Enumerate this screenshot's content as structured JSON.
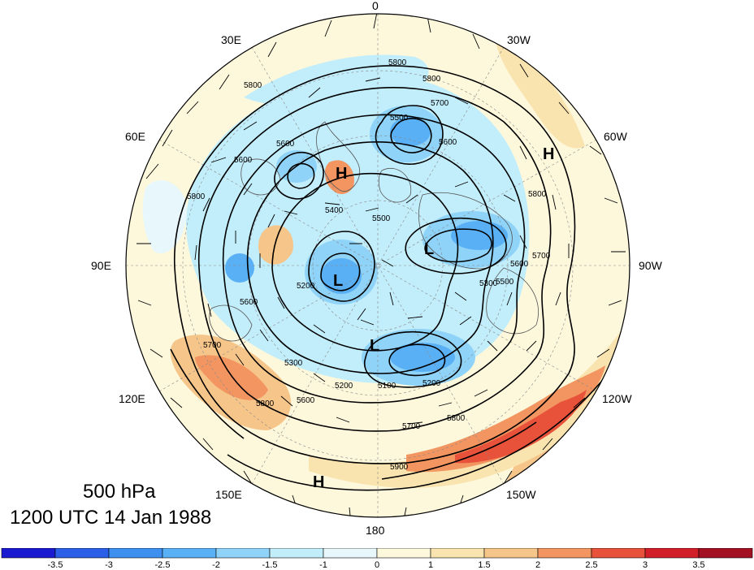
{
  "title": {
    "level": "500 hPa",
    "datetime": "1200 UTC 14 Jan 1988"
  },
  "longitude_labels": [
    {
      "text": "0",
      "key": "lon_0"
    },
    {
      "text": "30W",
      "key": "lon_30w"
    },
    {
      "text": "60W",
      "key": "lon_60w"
    },
    {
      "text": "90W",
      "key": "lon_90w"
    },
    {
      "text": "120W",
      "key": "lon_120w"
    },
    {
      "text": "150W",
      "key": "lon_150w"
    },
    {
      "text": "180",
      "key": "lon_180"
    },
    {
      "text": "150E",
      "key": "lon_150e"
    },
    {
      "text": "120E",
      "key": "lon_120e"
    },
    {
      "text": "90E",
      "key": "lon_90e"
    },
    {
      "text": "60E",
      "key": "lon_60e"
    },
    {
      "text": "30E",
      "key": "lon_30e"
    }
  ],
  "pressure_centers": [
    {
      "label": "H",
      "key": "h_atlantic"
    },
    {
      "label": "H",
      "key": "h_scandinavia"
    },
    {
      "label": "L",
      "key": "l_siberia"
    },
    {
      "label": "L",
      "key": "l_canada"
    },
    {
      "label": "L",
      "key": "l_pacific"
    },
    {
      "label": "H",
      "key": "h_pacific"
    }
  ],
  "contour_labels": [
    "5800",
    "5800",
    "5700",
    "5500",
    "5600",
    "5600",
    "5400",
    "5800",
    "5800",
    "5700",
    "5600",
    "5500",
    "5600",
    "5300",
    "5200",
    "5200",
    "5300",
    "5100",
    "5200",
    "5700",
    "5800",
    "5900",
    "5700",
    "5800",
    "5600",
    "5800",
    "5600",
    "5500"
  ],
  "colorbar": {
    "ticks": [
      "-3.5",
      "-3",
      "-2.5",
      "-2",
      "-1.5",
      "-1",
      "0",
      "1",
      "1.5",
      "2",
      "2.5",
      "3",
      "3.5"
    ],
    "colors": [
      "#1a1ad0",
      "#2b5fe8",
      "#3d8ff0",
      "#5ab0f5",
      "#8fd3f8",
      "#c2edfb",
      "#e7f7fb",
      "#fdf8dc",
      "#f9e4b0",
      "#f6c58a",
      "#f29560",
      "#e8523a",
      "#d21e28",
      "#a31222"
    ]
  }
}
